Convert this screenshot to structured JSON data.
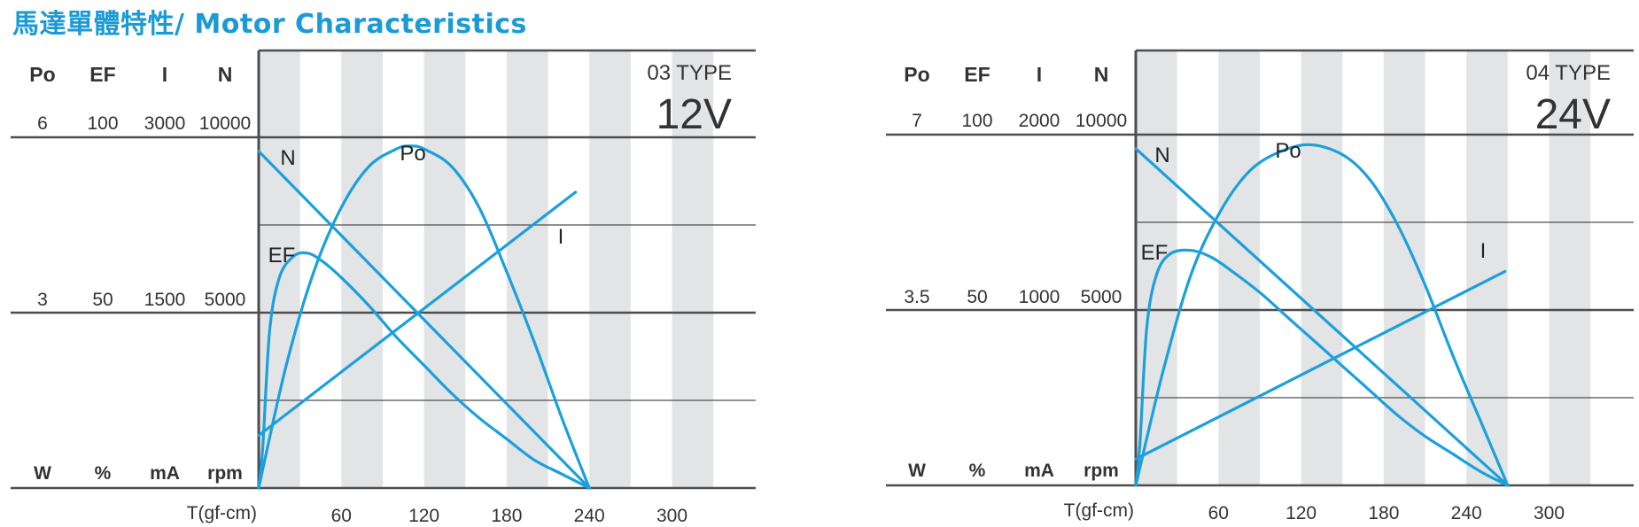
{
  "page": {
    "title": "馬達單體特性/ Motor Characteristics"
  },
  "colors": {
    "curve": "#1aa0dc",
    "title": "#1a9ad6",
    "axis": "#4d4d4f",
    "stripe": "#e3e4e6",
    "text": "#333333"
  },
  "chart_data": [
    {
      "type": "line",
      "type_label": "03 TYPE",
      "voltage": "12V",
      "axis_headers": [
        "Po",
        "EF",
        "I",
        "N"
      ],
      "axis_max": [
        "6",
        "100",
        "3000",
        "10000"
      ],
      "axis_mid": [
        "3",
        "50",
        "1500",
        "5000"
      ],
      "axis_units": [
        "W",
        "%",
        "mA",
        "rpm"
      ],
      "x_title": "T(gf-cm)",
      "x_ticks": [
        "60",
        "120",
        "180",
        "240",
        "300"
      ],
      "xlim": [
        0,
        330
      ],
      "stripe_width": 30,
      "series": [
        {
          "name": "N",
          "scale": "N",
          "points": [
            [
              0,
              9600
            ],
            [
              240,
              0
            ]
          ]
        },
        {
          "name": "I",
          "scale": "I",
          "points": [
            [
              0,
              450
            ],
            [
              230,
              2530
            ]
          ]
        },
        {
          "name": "Po",
          "scale": "Po",
          "points": [
            [
              0,
              0
            ],
            [
              20,
              2.1
            ],
            [
              40,
              3.7
            ],
            [
              60,
              4.8
            ],
            [
              80,
              5.5
            ],
            [
              100,
              5.8
            ],
            [
              110,
              5.85
            ],
            [
              120,
              5.8
            ],
            [
              140,
              5.5
            ],
            [
              160,
              4.8
            ],
            [
              180,
              3.7
            ],
            [
              200,
              2.5
            ],
            [
              220,
              1.2
            ],
            [
              240,
              0
            ]
          ]
        },
        {
          "name": "EF",
          "scale": "EF",
          "points": [
            [
              0,
              0
            ],
            [
              3,
              12
            ],
            [
              8,
              45
            ],
            [
              15,
              60
            ],
            [
              25,
              66
            ],
            [
              35,
              67
            ],
            [
              45,
              65
            ],
            [
              60,
              60
            ],
            [
              80,
              52
            ],
            [
              100,
              43
            ],
            [
              120,
              35
            ],
            [
              140,
              27
            ],
            [
              160,
              20
            ],
            [
              180,
              14
            ],
            [
              200,
              8
            ],
            [
              220,
              4
            ],
            [
              240,
              0
            ]
          ]
        }
      ],
      "series_labels": [
        "N",
        "Po",
        "EF",
        "I"
      ]
    },
    {
      "type": "line",
      "type_label": "04 TYPE",
      "voltage": "24V",
      "axis_headers": [
        "Po",
        "EF",
        "I",
        "N"
      ],
      "axis_max": [
        "7",
        "100",
        "2000",
        "10000"
      ],
      "axis_mid": [
        "3.5",
        "50",
        "1000",
        "5000"
      ],
      "axis_units": [
        "W",
        "%",
        "mA",
        "rpm"
      ],
      "x_title": "T(gf-cm)",
      "x_ticks": [
        "60",
        "120",
        "180",
        "240",
        "300"
      ],
      "xlim": [
        0,
        330
      ],
      "stripe_width": 30,
      "series": [
        {
          "name": "N",
          "scale": "N",
          "points": [
            [
              0,
              9600
            ],
            [
              270,
              0
            ]
          ]
        },
        {
          "name": "I",
          "scale": "I",
          "points": [
            [
              0,
              150
            ],
            [
              268,
              1220
            ]
          ]
        },
        {
          "name": "Po",
          "scale": "Po",
          "points": [
            [
              0,
              0
            ],
            [
              20,
              2.3
            ],
            [
              40,
              4.2
            ],
            [
              60,
              5.4
            ],
            [
              80,
              6.2
            ],
            [
              100,
              6.6
            ],
            [
              125,
              6.8
            ],
            [
              150,
              6.6
            ],
            [
              170,
              6.1
            ],
            [
              190,
              5.2
            ],
            [
              210,
              4.0
            ],
            [
              230,
              2.6
            ],
            [
              250,
              1.3
            ],
            [
              270,
              0
            ]
          ]
        },
        {
          "name": "EF",
          "scale": "EF",
          "points": [
            [
              0,
              0
            ],
            [
              3,
              12
            ],
            [
              8,
              45
            ],
            [
              15,
              60
            ],
            [
              25,
              66
            ],
            [
              40,
              67
            ],
            [
              55,
              65
            ],
            [
              70,
              61
            ],
            [
              90,
              55
            ],
            [
              110,
              48
            ],
            [
              130,
              41
            ],
            [
              150,
              34
            ],
            [
              170,
              27
            ],
            [
              190,
              20
            ],
            [
              210,
              14
            ],
            [
              230,
              9
            ],
            [
              250,
              4
            ],
            [
              270,
              0
            ]
          ]
        }
      ],
      "series_labels": [
        "N",
        "Po",
        "EF",
        "I"
      ]
    }
  ]
}
